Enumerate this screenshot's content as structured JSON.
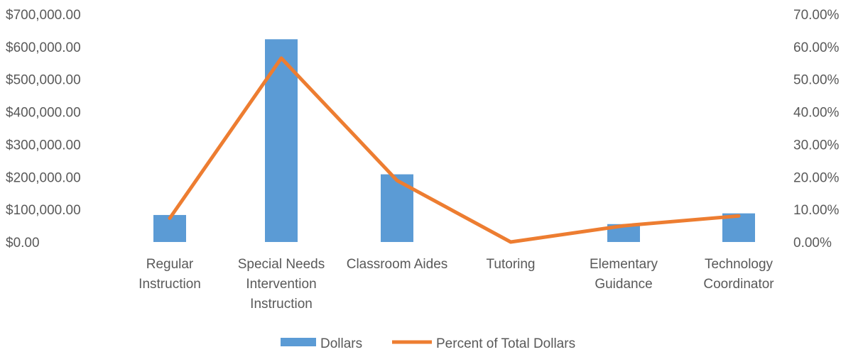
{
  "chart_data": {
    "type": "bar",
    "title": "",
    "categories": [
      [
        "Regular",
        "Instruction"
      ],
      [
        "Special Needs",
        "Intervention",
        "Instruction"
      ],
      [
        "Classroom Aides"
      ],
      [
        "Tutoring"
      ],
      [
        "Elementary",
        "Guidance"
      ],
      [
        "Technology",
        "Coordinator"
      ]
    ],
    "series": [
      {
        "name": "Dollars",
        "type": "bar",
        "axis": "left",
        "color": "#5B9BD5",
        "values": [
          83000,
          623000,
          208000,
          0,
          55000,
          88000
        ]
      },
      {
        "name": "Percent of Total Dollars",
        "type": "line",
        "axis": "right",
        "color": "#ED7D31",
        "values": [
          0.073,
          0.565,
          0.189,
          0.0,
          0.05,
          0.08
        ]
      }
    ],
    "y_left": {
      "ylim": [
        0,
        700000
      ],
      "ticks": [
        0,
        100000,
        200000,
        300000,
        400000,
        500000,
        600000,
        700000
      ],
      "tick_labels": [
        "$0.00",
        "$100,000.00",
        "$200,000.00",
        "$300,000.00",
        "$400,000.00",
        "$500,000.00",
        "$600,000.00",
        "$700,000.00"
      ]
    },
    "y_right": {
      "ylim": [
        0,
        0.7
      ],
      "ticks": [
        0,
        0.1,
        0.2,
        0.3,
        0.4,
        0.5,
        0.6,
        0.7
      ],
      "tick_labels": [
        "0.00%",
        "10.00%",
        "20.00%",
        "30.00%",
        "40.00%",
        "50.00%",
        "60.00%",
        "70.00%"
      ]
    },
    "grid": false,
    "legend": "bottom-center"
  }
}
